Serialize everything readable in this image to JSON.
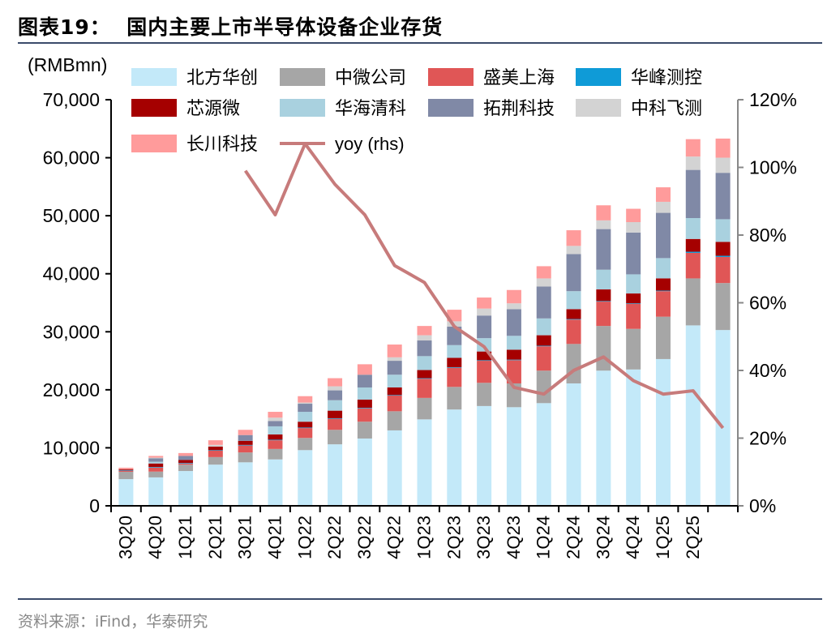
{
  "title": "图表19：  国内主要上市半导体设备企业存货",
  "source": "资料来源：iFind，华泰研究",
  "chart_data": {
    "type": "bar",
    "stacked": true,
    "unit_label": "(RMBmn)",
    "categories": [
      "3Q20",
      "4Q20",
      "1Q21",
      "2Q21",
      "3Q21",
      "4Q21",
      "1Q22",
      "2Q22",
      "3Q22",
      "4Q22",
      "1Q23",
      "2Q23",
      "3Q23",
      "4Q23",
      "1Q24",
      "2Q24",
      "3Q24",
      "4Q24",
      "1Q25",
      "2Q25",
      ""
    ],
    "ylim": [
      0,
      70000
    ],
    "yticks": [
      "0",
      "10,000",
      "20,000",
      "30,000",
      "40,000",
      "50,000",
      "60,000",
      "70,000"
    ],
    "y2lim": [
      0,
      120
    ],
    "y2ticks": [
      "0%",
      "20%",
      "40%",
      "60%",
      "80%",
      "100%",
      "120%"
    ],
    "legend_placement": "top",
    "series": [
      {
        "name": "北方华创",
        "color": "#c3e9f9",
        "values": [
          4600,
          4900,
          6000,
          7100,
          7500,
          8000,
          9600,
          10600,
          11600,
          13000,
          14900,
          16600,
          17200,
          17000,
          17700,
          21100,
          23300,
          23500,
          25300,
          31100,
          30300
        ]
      },
      {
        "name": "中微公司",
        "color": "#a6a6a6",
        "values": [
          1270,
          1000,
          1100,
          1300,
          1700,
          1800,
          2100,
          2500,
          2900,
          3300,
          3700,
          3900,
          4000,
          4100,
          5600,
          6800,
          7700,
          7000,
          7300,
          8100,
          8100
        ]
      },
      {
        "name": "盛美上海",
        "color": "#e05656",
        "values": [
          200,
          700,
          200,
          1100,
          1200,
          1500,
          1700,
          1900,
          2300,
          2700,
          3300,
          3300,
          3800,
          4000,
          4200,
          4200,
          4200,
          4300,
          4400,
          4400,
          4500
        ]
      },
      {
        "name": "华峰测控",
        "color": "#0f9bd7",
        "values": [
          100,
          100,
          100,
          100,
          100,
          100,
          100,
          100,
          100,
          100,
          100,
          100,
          100,
          100,
          100,
          100,
          100,
          100,
          100,
          200,
          200
        ]
      },
      {
        "name": "芯源微",
        "color": "#a50000",
        "values": [
          150,
          600,
          500,
          600,
          700,
          900,
          1000,
          1300,
          1400,
          1300,
          1400,
          1600,
          1500,
          1700,
          1800,
          1700,
          2000,
          1700,
          2100,
          2200,
          2400
        ]
      },
      {
        "name": "华海清科",
        "color": "#a9d1df",
        "values": [
          0,
          300,
          0,
          0,
          0,
          1400,
          1700,
          1800,
          2100,
          2200,
          2400,
          2200,
          2300,
          2400,
          2900,
          3100,
          3400,
          3300,
          3500,
          3600,
          3900
        ]
      },
      {
        "name": "拓荆科技",
        "color": "#8089a6",
        "values": [
          0,
          600,
          700,
          0,
          1000,
          900,
          1400,
          1700,
          2200,
          2400,
          2700,
          3200,
          3900,
          4600,
          5500,
          6400,
          7000,
          7200,
          7800,
          8300,
          8000
        ]
      },
      {
        "name": "中科飞测",
        "color": "#d3d3d3",
        "values": [
          0,
          100,
          0,
          300,
          0,
          600,
          200,
          700,
          0,
          600,
          900,
          900,
          1200,
          1000,
          1400,
          1400,
          1500,
          1800,
          1900,
          2300,
          2600
        ]
      },
      {
        "name": "长川科技",
        "color": "#ff9b9b",
        "values": [
          250,
          300,
          500,
          800,
          900,
          1000,
          1100,
          1400,
          1800,
          2200,
          1600,
          2000,
          1900,
          2300,
          2100,
          2700,
          2600,
          2300,
          2500,
          3000,
          3300
        ]
      }
    ],
    "line": {
      "name": "yoy (rhs)",
      "color": "#c77b7b",
      "axis": "right",
      "values": [
        null,
        null,
        null,
        null,
        99,
        86,
        107,
        95,
        86,
        71,
        66,
        53,
        47,
        35,
        33,
        40,
        44,
        37,
        33,
        34,
        23
      ]
    }
  }
}
